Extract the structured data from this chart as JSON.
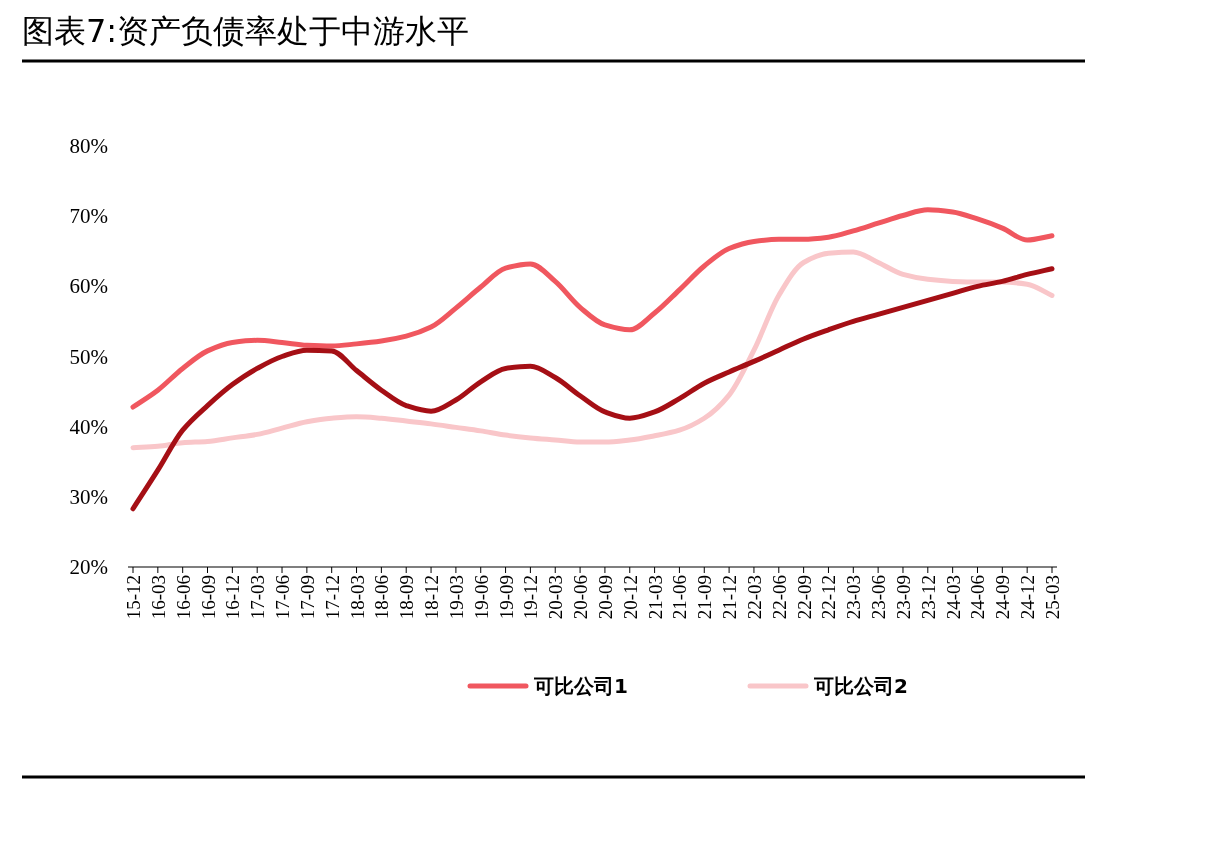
{
  "chart_data": {
    "type": "line",
    "title": "图表7:资产负债率处于中游水平",
    "categories": [
      "15-12",
      "16-03",
      "16-06",
      "16-09",
      "16-12",
      "17-03",
      "17-06",
      "17-09",
      "17-12",
      "18-03",
      "18-06",
      "18-09",
      "18-12",
      "19-03",
      "19-06",
      "19-09",
      "19-12",
      "20-03",
      "20-06",
      "20-09",
      "20-12",
      "21-03",
      "21-06",
      "21-09",
      "21-12",
      "22-03",
      "22-06",
      "22-09",
      "22-12",
      "23-03",
      "23-06",
      "23-09",
      "23-12",
      "24-03",
      "24-06",
      "24-09",
      "24-12",
      "25-03"
    ],
    "series": [
      {
        "color": "#a50f15",
        "values": [
          28.3,
          33.8,
          39.5,
          43,
          46,
          48.3,
          50,
          50.9,
          50.8,
          48,
          45.2,
          43,
          42.2,
          43.8,
          46.4,
          48.3,
          48.6,
          47,
          44.4,
          42.1,
          41.2,
          42.1,
          44,
          46.2,
          47.8,
          49.3,
          50.9,
          52.5,
          53.8,
          55,
          56,
          57,
          58,
          59,
          60,
          60.7,
          61.7,
          62.5
        ]
      },
      {
        "name": "可比公司1",
        "color": "#f0575f",
        "values": [
          42.8,
          45.2,
          48.3,
          50.8,
          52,
          52.3,
          52,
          51.6,
          51.5,
          51.8,
          52.2,
          52.9,
          54.2,
          56.9,
          59.9,
          62.6,
          63.2,
          60.7,
          57,
          54.5,
          53.8,
          56.2,
          59.5,
          62.9,
          65.4,
          66.4,
          66.7,
          66.7,
          67,
          67.9,
          69,
          70.1,
          70.9,
          70.6,
          69.6,
          68.3,
          66.6,
          67.2
        ]
      },
      {
        "name": "可比公司2",
        "color": "#f9c6c9",
        "values": [
          37,
          37.2,
          37.7,
          37.9,
          38.4,
          38.9,
          39.8,
          40.7,
          41.2,
          41.4,
          41.2,
          40.8,
          40.4,
          39.9,
          39.4,
          38.8,
          38.4,
          38.1,
          37.8,
          37.8,
          38.1,
          38.7,
          39.5,
          41.2,
          44.5,
          50.9,
          58.7,
          63.4,
          64.7,
          64.9,
          63.4,
          61.7,
          61,
          60.7,
          60.6,
          60.6,
          60.3,
          58.7
        ]
      }
    ],
    "ylim": [
      20,
      80
    ],
    "yticks": [
      {
        "value": 20,
        "label": "20%"
      },
      {
        "value": 30,
        "label": "30%"
      },
      {
        "value": 40,
        "label": "40%"
      },
      {
        "value": 50,
        "label": "50%"
      },
      {
        "value": 60,
        "label": "60%"
      },
      {
        "value": 70,
        "label": "70%"
      },
      {
        "value": 80,
        "label": "80%"
      }
    ],
    "legend": "bottom"
  }
}
